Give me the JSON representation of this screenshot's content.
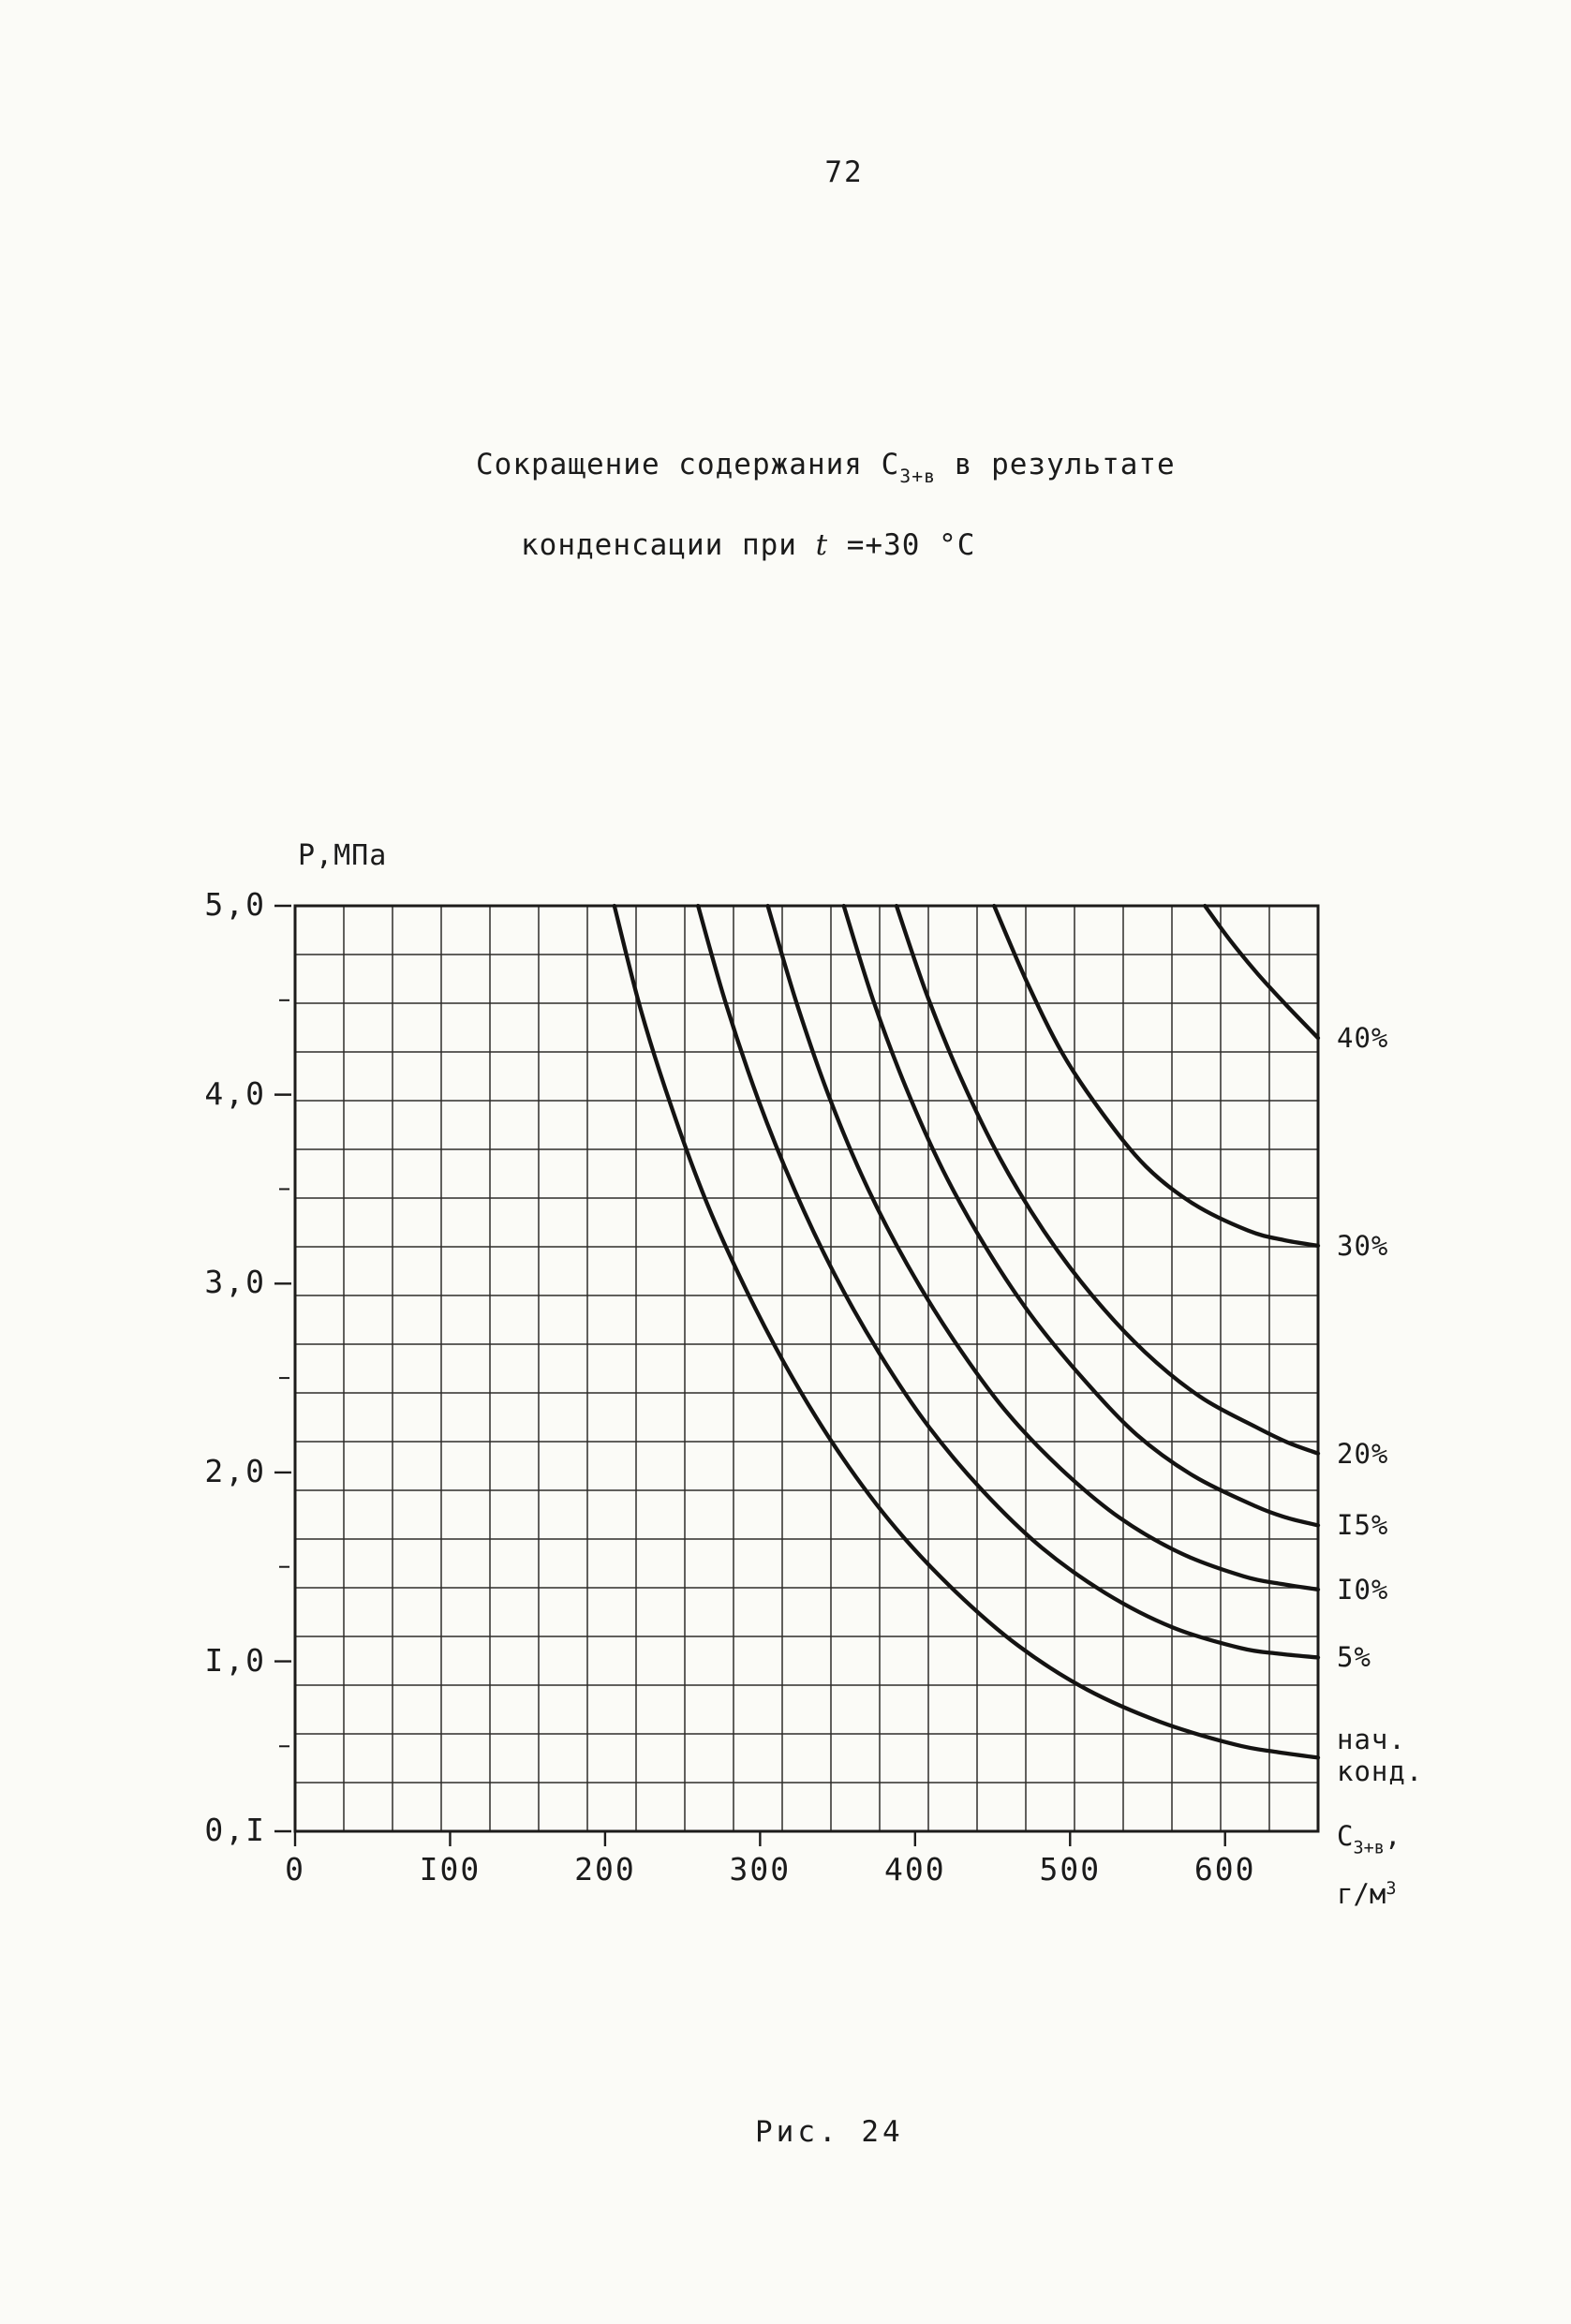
{
  "page": {
    "number": "72"
  },
  "title": {
    "line1_pre": "Сокращение содержания С",
    "line1_sub": "3+в",
    "line1_post": " в результате",
    "line2_pre": "конденсации при ",
    "line2_t": "t",
    "line2_post": " =+30 °С"
  },
  "caption": {
    "text": "Рис. 24"
  },
  "chart": {
    "y_axis_title": "Р,МПа",
    "y_ticks": [
      {
        "label": "5,0",
        "value": 5.0
      },
      {
        "label": "4,0",
        "value": 4.0
      },
      {
        "label": "3,0",
        "value": 3.0
      },
      {
        "label": "2,0",
        "value": 2.0
      },
      {
        "label": "I,0",
        "value": 1.0
      },
      {
        "label": "0,I",
        "value": 0.1
      }
    ],
    "y_minor_ticks": [
      4.5,
      3.5,
      2.5,
      1.5,
      0.55
    ],
    "x_ticks": [
      {
        "label": "0",
        "value": 0
      },
      {
        "label": "I00",
        "value": 100
      },
      {
        "label": "200",
        "value": 200
      },
      {
        "label": "300",
        "value": 300
      },
      {
        "label": "400",
        "value": 400
      },
      {
        "label": "500",
        "value": 500
      },
      {
        "label": "600",
        "value": 600
      }
    ],
    "x_unit_line1_pre": "С",
    "x_unit_line1_sub": "3+в",
    "x_unit_line1_post": ",",
    "x_unit_line2_pre": "г/м",
    "x_unit_line2_sup": "3"
  },
  "chart_data": {
    "type": "line",
    "title": "Сокращение содержания С3+в в результате конденсации при t = +30 °С",
    "xlabel": "С3+в, г/м3",
    "ylabel": "Р, МПа",
    "xlim": [
      0,
      660
    ],
    "ylim": [
      0.1,
      5.0
    ],
    "grid": true,
    "legend_position": "right-margin",
    "series": [
      {
        "name": "40%",
        "percent": 40,
        "points": [
          [
            587,
            5.0
          ],
          [
            603,
            4.82
          ],
          [
            621,
            4.64
          ],
          [
            640,
            4.47
          ],
          [
            660,
            4.3
          ]
        ]
      },
      {
        "name": "30%",
        "percent": 30,
        "points": [
          [
            451,
            5.0
          ],
          [
            472,
            4.6
          ],
          [
            495,
            4.22
          ],
          [
            521,
            3.9
          ],
          [
            549,
            3.62
          ],
          [
            580,
            3.42
          ],
          [
            615,
            3.28
          ],
          [
            638,
            3.23
          ],
          [
            660,
            3.2
          ]
        ]
      },
      {
        "name": "20%",
        "percent": 20,
        "points": [
          [
            388,
            5.0
          ],
          [
            408,
            4.52
          ],
          [
            430,
            4.08
          ],
          [
            455,
            3.66
          ],
          [
            483,
            3.28
          ],
          [
            514,
            2.94
          ],
          [
            548,
            2.64
          ],
          [
            584,
            2.4
          ],
          [
            620,
            2.24
          ],
          [
            640,
            2.16
          ],
          [
            660,
            2.1
          ]
        ]
      },
      {
        "name": "I5%",
        "percent": 15,
        "points": [
          [
            354,
            5.0
          ],
          [
            373,
            4.5
          ],
          [
            394,
            4.04
          ],
          [
            418,
            3.6
          ],
          [
            445,
            3.2
          ],
          [
            475,
            2.83
          ],
          [
            508,
            2.5
          ],
          [
            543,
            2.2
          ],
          [
            580,
            1.98
          ],
          [
            620,
            1.82
          ],
          [
            640,
            1.76
          ],
          [
            660,
            1.72
          ]
        ]
      },
      {
        "name": "I0%",
        "percent": 10,
        "points": [
          [
            305,
            5.0
          ],
          [
            323,
            4.5
          ],
          [
            344,
            4.0
          ],
          [
            368,
            3.53
          ],
          [
            395,
            3.1
          ],
          [
            425,
            2.7
          ],
          [
            458,
            2.33
          ],
          [
            494,
            2.02
          ],
          [
            532,
            1.76
          ],
          [
            572,
            1.57
          ],
          [
            612,
            1.45
          ],
          [
            636,
            1.41
          ],
          [
            660,
            1.38
          ]
        ]
      },
      {
        "name": "5%",
        "percent": 5,
        "points": [
          [
            260,
            5.0
          ],
          [
            278,
            4.48
          ],
          [
            299,
            3.97
          ],
          [
            322,
            3.5
          ],
          [
            348,
            3.05
          ],
          [
            377,
            2.63
          ],
          [
            409,
            2.24
          ],
          [
            444,
            1.9
          ],
          [
            482,
            1.6
          ],
          [
            523,
            1.36
          ],
          [
            566,
            1.18
          ],
          [
            610,
            1.07
          ],
          [
            635,
            1.04
          ],
          [
            660,
            1.02
          ]
        ]
      },
      {
        "name": "нач. конд.",
        "percent": 0,
        "label_lines": [
          "нач.",
          "конд."
        ],
        "points": [
          [
            206,
            5.0
          ],
          [
            223,
            4.45
          ],
          [
            243,
            3.93
          ],
          [
            266,
            3.42
          ],
          [
            292,
            2.95
          ],
          [
            321,
            2.5
          ],
          [
            353,
            2.08
          ],
          [
            388,
            1.7
          ],
          [
            426,
            1.37
          ],
          [
            467,
            1.08
          ],
          [
            511,
            0.85
          ],
          [
            558,
            0.68
          ],
          [
            606,
            0.56
          ],
          [
            633,
            0.52
          ],
          [
            660,
            0.49
          ]
        ]
      }
    ]
  }
}
